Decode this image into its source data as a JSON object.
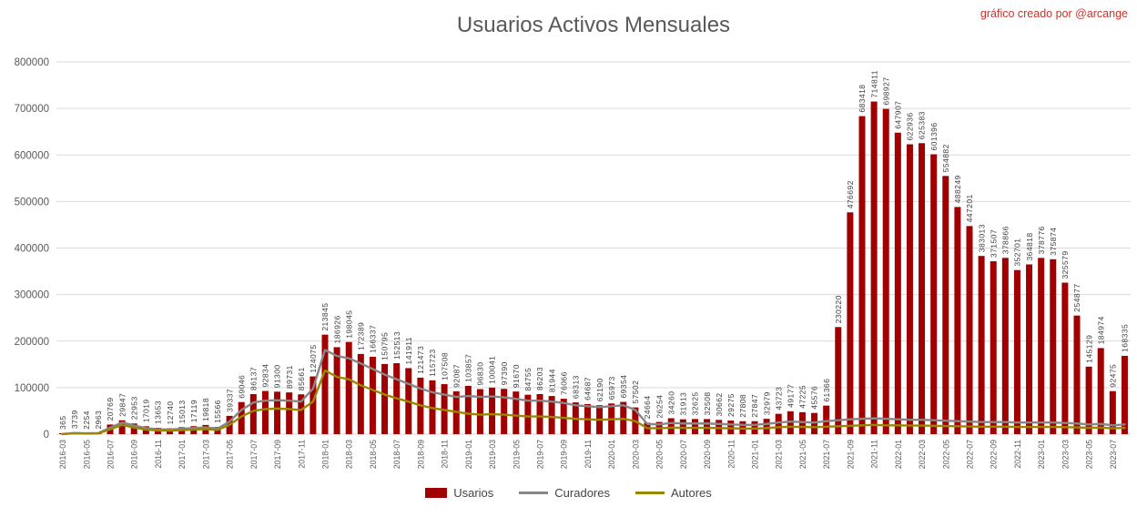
{
  "header": {
    "title": "Usuarios Activos Mensuales",
    "credit": "gráfico creado por @arcange"
  },
  "colors": {
    "bar": "#a00000",
    "curadores_line": "#878787",
    "autores_line": "#9a8700",
    "axis_text": "#595959",
    "bar_label_text": "#3c3c3c",
    "gridline": "#d9d9d9",
    "title_text": "#595959",
    "credit_text": "#c9342b"
  },
  "legend": [
    {
      "label": "Usarios",
      "type": "bar",
      "color": "#a00000"
    },
    {
      "label": "Curadores",
      "type": "line",
      "color": "#878787"
    },
    {
      "label": "Autores",
      "type": "line",
      "color": "#9a8700"
    }
  ],
  "chart_data": {
    "type": "bar",
    "title": "Usuarios Activos Mensuales",
    "xlabel": "",
    "ylabel": "",
    "ylim": [
      0,
      800000
    ],
    "y_ticks": [
      0,
      100000,
      200000,
      300000,
      400000,
      500000,
      600000,
      700000,
      800000
    ],
    "grid": "horizontal",
    "legend_position": "bottom",
    "bar_labels": true,
    "x_tick_every": 2,
    "categories": [
      "2016-03",
      "2016-04",
      "2016-05",
      "2016-06",
      "2016-07",
      "2016-08",
      "2016-09",
      "2016-10",
      "2016-11",
      "2016-12",
      "2017-01",
      "2017-02",
      "2017-03",
      "2017-04",
      "2017-05",
      "2017-06",
      "2017-07",
      "2017-08",
      "2017-09",
      "2017-10",
      "2017-11",
      "2017-12",
      "2018-01",
      "2018-02",
      "2018-03",
      "2018-04",
      "2018-05",
      "2018-06",
      "2018-07",
      "2018-08",
      "2018-09",
      "2018-10",
      "2018-11",
      "2018-12",
      "2019-01",
      "2019-02",
      "2019-03",
      "2019-04",
      "2019-05",
      "2019-06",
      "2019-07",
      "2019-08",
      "2019-09",
      "2019-10",
      "2019-11",
      "2019-12",
      "2020-01",
      "2020-02",
      "2020-03",
      "2020-04",
      "2020-05",
      "2020-06",
      "2020-07",
      "2020-08",
      "2020-09",
      "2020-10",
      "2020-11",
      "2020-12",
      "2021-01",
      "2021-02",
      "2021-03",
      "2021-04",
      "2021-05",
      "2021-06",
      "2021-07",
      "2021-08",
      "2021-09",
      "2021-10",
      "2021-11",
      "2021-12",
      "2022-01",
      "2022-02",
      "2022-03",
      "2022-04",
      "2022-05",
      "2022-06",
      "2022-07",
      "2022-08",
      "2022-09",
      "2022-10",
      "2022-11",
      "2022-12",
      "2023-01",
      "2023-02",
      "2023-03",
      "2023-04",
      "2023-05",
      "2023-06",
      "2023-07",
      "2023-08"
    ],
    "series": [
      {
        "name": "Usarios",
        "type": "bar",
        "color": "#a00000",
        "values": [
          365,
          3739,
          2254,
          2963,
          20769,
          29847,
          22953,
          17019,
          13653,
          12740,
          15013,
          17119,
          19818,
          15566,
          39337,
          69046,
          86137,
          92834,
          91300,
          89731,
          85661,
          124075,
          213845,
          186926,
          198045,
          172389,
          166337,
          150795,
          152513,
          141911,
          121473,
          115723,
          107508,
          92087,
          103857,
          96830,
          100041,
          97390,
          91670,
          84755,
          86203,
          81944,
          76066,
          68313,
          64687,
          62190,
          65973,
          69354,
          57502,
          24664,
          26254,
          34260,
          31913,
          32625,
          32508,
          30662,
          29275,
          27808,
          27847,
          32979,
          43723,
          49177,
          47225,
          45576,
          61366,
          230220,
          476692,
          683418,
          714811,
          698927,
          647907,
          622936,
          625383,
          601396,
          554882,
          488249,
          447201,
          383013,
          371507,
          378866,
          352701,
          364818,
          378776,
          375874,
          325579,
          254877,
          145129,
          184974,
          92475,
          168335
        ]
      },
      {
        "name": "Curadores",
        "type": "line",
        "color": "#878787",
        "estimated": true,
        "values": [
          300,
          2600,
          1900,
          2300,
          14000,
          25000,
          18500,
          13000,
          10500,
          9800,
          11500,
          13000,
          14500,
          12000,
          27000,
          52000,
          68000,
          72000,
          73000,
          72000,
          70000,
          98000,
          181000,
          168000,
          163000,
          152000,
          140000,
          128000,
          118000,
          108000,
          98000,
          90000,
          85000,
          80000,
          82000,
          80000,
          81000,
          79000,
          76000,
          72000,
          72000,
          70000,
          67000,
          62000,
          60000,
          58000,
          60000,
          62000,
          52000,
          22000,
          21000,
          24000,
          23000,
          23000,
          23000,
          22000,
          21000,
          20000,
          20000,
          22000,
          25000,
          27000,
          26000,
          25000,
          28000,
          30000,
          32000,
          33000,
          34000,
          33000,
          32000,
          31000,
          31000,
          30000,
          29000,
          28000,
          27000,
          26000,
          26000,
          26000,
          25000,
          25000,
          25000,
          25000,
          24000,
          23000,
          21000,
          22000,
          19000,
          21000
        ]
      },
      {
        "name": "Autores",
        "type": "line",
        "color": "#9a8700",
        "estimated": true,
        "values": [
          100,
          1900,
          1400,
          1700,
          10500,
          20000,
          14000,
          10000,
          8000,
          7500,
          8800,
          10000,
          11000,
          9200,
          20000,
          38000,
          50000,
          54000,
          55000,
          54000,
          52000,
          70000,
          137000,
          123000,
          118000,
          105000,
          95000,
          85000,
          77000,
          70000,
          62000,
          56000,
          52000,
          48000,
          44000,
          42000,
          43000,
          42000,
          40000,
          38000,
          38000,
          37000,
          35000,
          33000,
          32000,
          31000,
          32000,
          33000,
          28000,
          13000,
          12500,
          14000,
          13500,
          13500,
          13500,
          13000,
          12500,
          12000,
          12000,
          13000,
          15000,
          16000,
          15500,
          15000,
          16000,
          17000,
          18000,
          19000,
          20000,
          19000,
          19000,
          18500,
          18500,
          18000,
          17500,
          17000,
          16500,
          16000,
          16000,
          16000,
          15500,
          15500,
          15500,
          15500,
          15000,
          14500,
          13500,
          14000,
          12500,
          13500
        ]
      }
    ]
  }
}
